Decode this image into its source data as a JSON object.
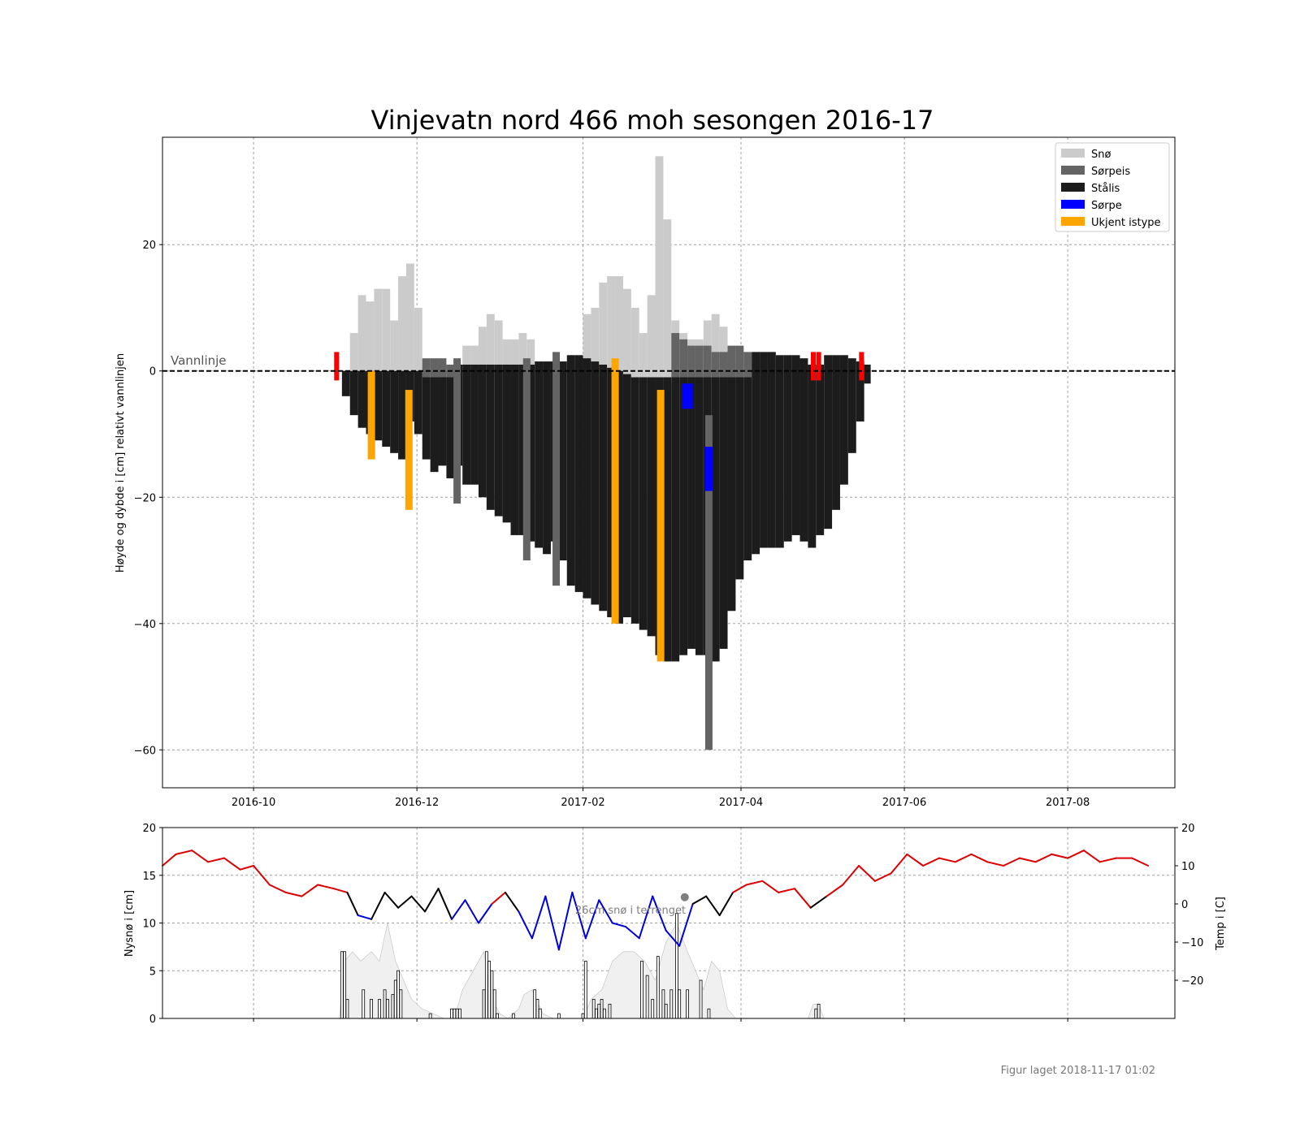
{
  "title": "Vinjevatn nord 466 moh sesongen 2016-17",
  "footer": "Figur laget 2018-11-17 01:02",
  "colors": {
    "snow": "#cbcbcb",
    "slush_ice": "#646464",
    "black_ice": "#1c1c1c",
    "slush": "#0000ff",
    "unknown": "#ffa500",
    "marker": "#ff0000",
    "temp_warm": "#dd0000",
    "temp_mid": "#000000",
    "temp_cold": "#0000dd",
    "snow_area": "#f0f0f0"
  },
  "chart_data": [
    {
      "type": "bar",
      "title": "Vinjevatn nord 466 moh sesongen 2016-17",
      "ylabel": "Høyde og dybde i [cm] relativt vannlinjen",
      "xlabel": "",
      "xlim": [
        "2016-08-28",
        "2017-09-10"
      ],
      "ylim": [
        -66,
        37
      ],
      "xticks": [
        "2016-10",
        "2016-12",
        "2017-02",
        "2017-04",
        "2017-06",
        "2017-08"
      ],
      "yticks": [
        -60,
        -40,
        -20,
        0,
        20
      ],
      "grid": true,
      "legend_position": "top-right",
      "legend": [
        "Snø",
        "Sørpeis",
        "Stålis",
        "Sørpe",
        "Ukjent istype"
      ],
      "waterline_label": "Vannlinje",
      "waterline_y": 0,
      "ice_profile": {
        "dates": [
          "2016-11-03",
          "2016-11-06",
          "2016-11-09",
          "2016-11-12",
          "2016-11-15",
          "2016-11-18",
          "2016-11-21",
          "2016-11-24",
          "2016-11-27",
          "2016-11-30",
          "2016-12-03",
          "2016-12-06",
          "2016-12-09",
          "2016-12-12",
          "2016-12-15",
          "2016-12-18",
          "2016-12-21",
          "2016-12-24",
          "2016-12-27",
          "2016-12-30",
          "2017-01-02",
          "2017-01-05",
          "2017-01-08",
          "2017-01-11",
          "2017-01-14",
          "2017-01-17",
          "2017-01-20",
          "2017-01-23",
          "2017-01-26",
          "2017-01-29",
          "2017-02-01",
          "2017-02-04",
          "2017-02-07",
          "2017-02-10",
          "2017-02-13",
          "2017-02-16",
          "2017-02-19",
          "2017-02-22",
          "2017-02-25",
          "2017-02-28",
          "2017-03-03",
          "2017-03-06",
          "2017-03-09",
          "2017-03-12",
          "2017-03-15",
          "2017-03-18",
          "2017-03-21",
          "2017-03-24",
          "2017-03-27",
          "2017-03-30",
          "2017-04-02",
          "2017-04-05",
          "2017-04-08",
          "2017-04-11",
          "2017-04-14",
          "2017-04-17",
          "2017-04-20",
          "2017-04-23",
          "2017-04-26",
          "2017-04-29",
          "2017-05-02",
          "2017-05-05",
          "2017-05-08",
          "2017-05-11",
          "2017-05-14",
          "2017-05-17"
        ],
        "snow_top": [
          0,
          6,
          12,
          11,
          13,
          13,
          8,
          15,
          17,
          10,
          0,
          0,
          0,
          0,
          0,
          4,
          4,
          7,
          9,
          8,
          5,
          5,
          6,
          5,
          0,
          0,
          0,
          0,
          0,
          0,
          9,
          10,
          14,
          15,
          15,
          13,
          10,
          6,
          12,
          34,
          24,
          8,
          6,
          5,
          5,
          8,
          9,
          7,
          0,
          0,
          0,
          0,
          0,
          0,
          0,
          0,
          0,
          0,
          0,
          0,
          0,
          0,
          0,
          0,
          0,
          0
        ],
        "surface": [
          0,
          0,
          0,
          0,
          0,
          0,
          0,
          0,
          0,
          0,
          1.5,
          1.5,
          1.5,
          1.5,
          1,
          1,
          1,
          1,
          1,
          1,
          1,
          1,
          1,
          1,
          1.5,
          1.5,
          1.5,
          1.5,
          2.5,
          2.5,
          2,
          1.5,
          1,
          0.5,
          0,
          -0.5,
          -1,
          -1,
          -1,
          -1,
          -1,
          -2,
          -2,
          -1,
          -1,
          -0.5,
          0,
          0,
          0,
          0,
          3,
          3,
          3,
          3,
          2.5,
          2.5,
          2.5,
          2,
          1,
          1,
          2.5,
          2.5,
          2.5,
          2,
          1.5,
          1
        ],
        "slush_ice_top": [
          0,
          0,
          0,
          0,
          0,
          0,
          0,
          0,
          0,
          0,
          2,
          2,
          2,
          1,
          0,
          0,
          0,
          0,
          0,
          0,
          0,
          0,
          0,
          0,
          0,
          0,
          0,
          0,
          0,
          0,
          0,
          0,
          0,
          0,
          0,
          0,
          0,
          0,
          0,
          0,
          0,
          6,
          5,
          4,
          4,
          4,
          3,
          3,
          4,
          4,
          3,
          0,
          0,
          0,
          0,
          0,
          0,
          0,
          0,
          0,
          0,
          0,
          0,
          0,
          0,
          0
        ],
        "bottom": [
          -4,
          -7,
          -9,
          -10,
          -11,
          -12,
          -13,
          -14,
          -8,
          -10,
          -14,
          -16,
          -15,
          -17,
          -15,
          -18,
          -18,
          -20,
          -22,
          -23,
          -24,
          -26,
          -26,
          -27,
          -28,
          -29,
          -27,
          -30,
          -34,
          -35,
          -36,
          -37,
          -38,
          -39,
          -40,
          -39,
          -40,
          -41,
          -42,
          -45,
          -46,
          -46,
          -45,
          -44,
          -45,
          -45,
          -46,
          -44,
          -38,
          -33,
          -30,
          -29,
          -28,
          -28,
          -28,
          -27,
          -26,
          -27,
          -28,
          -26,
          -25,
          -22,
          -18,
          -13,
          -8,
          -2
        ]
      },
      "special_columns": [
        {
          "date": "2016-11-01",
          "type": "marker",
          "top": 3,
          "bottom": -1.5
        },
        {
          "date": "2016-11-14",
          "type": "unknown",
          "top": 0,
          "bottom": -14
        },
        {
          "date": "2016-11-28",
          "type": "unknown",
          "top": -3,
          "bottom": -22
        },
        {
          "date": "2016-12-16",
          "type": "slush_ice",
          "top": 2,
          "bottom": -21
        },
        {
          "date": "2017-01-11",
          "type": "slush_ice",
          "top": 2,
          "bottom": -30
        },
        {
          "date": "2017-01-22",
          "type": "slush_ice",
          "top": 3,
          "bottom": -34
        },
        {
          "date": "2017-02-13",
          "type": "unknown",
          "top": 2,
          "bottom": -40
        },
        {
          "date": "2017-03-02",
          "type": "unknown",
          "top": -3,
          "bottom": -46
        },
        {
          "date": "2017-03-20",
          "type": "slush_ice",
          "top": -7,
          "bottom": -60
        },
        {
          "date": "2017-03-20",
          "type": "slush",
          "top": -12,
          "bottom": -19
        },
        {
          "date": "2017-04-28",
          "type": "marker",
          "top": 3,
          "bottom": -1.5
        },
        {
          "date": "2017-04-30",
          "type": "marker",
          "top": 3,
          "bottom": -1.5
        },
        {
          "date": "2017-05-16",
          "type": "marker",
          "top": 3,
          "bottom": -1.5
        }
      ]
    },
    {
      "type": "line",
      "ylabel": "Nysnø i [cm]",
      "y2label": "Temp i [C]",
      "xlim": [
        "2016-08-28",
        "2017-09-10"
      ],
      "ylim": [
        0,
        20
      ],
      "y2lim": [
        -30,
        20
      ],
      "yticks": [
        0,
        5,
        10,
        15,
        20
      ],
      "y2ticks": [
        -20,
        -10,
        0,
        10,
        20
      ],
      "grid": true,
      "annotation": "26cm snø i terrenget",
      "annotation_date": "2017-03-11",
      "annotation_y": 12.7,
      "temperature": {
        "name": "Temp",
        "x": [
          "2016-08-28",
          "2016-09-02",
          "2016-09-08",
          "2016-09-14",
          "2016-09-20",
          "2016-09-26",
          "2016-10-01",
          "2016-10-07",
          "2016-10-13",
          "2016-10-19",
          "2016-10-25",
          "2016-10-31",
          "2016-11-05",
          "2016-11-09",
          "2016-11-14",
          "2016-11-19",
          "2016-11-24",
          "2016-11-29",
          "2016-12-04",
          "2016-12-09",
          "2016-12-14",
          "2016-12-19",
          "2016-12-24",
          "2016-12-29",
          "2017-01-03",
          "2017-01-08",
          "2017-01-13",
          "2017-01-18",
          "2017-01-23",
          "2017-01-28",
          "2017-02-02",
          "2017-02-07",
          "2017-02-12",
          "2017-02-17",
          "2017-02-22",
          "2017-02-27",
          "2017-03-04",
          "2017-03-09",
          "2017-03-14",
          "2017-03-19",
          "2017-03-24",
          "2017-03-29",
          "2017-04-03",
          "2017-04-09",
          "2017-04-15",
          "2017-04-21",
          "2017-04-27",
          "2017-05-03",
          "2017-05-09",
          "2017-05-15",
          "2017-05-21",
          "2017-05-27",
          "2017-06-02",
          "2017-06-08",
          "2017-06-14",
          "2017-06-20",
          "2017-06-26",
          "2017-07-02",
          "2017-07-08",
          "2017-07-14",
          "2017-07-20",
          "2017-07-26",
          "2017-08-01",
          "2017-08-07",
          "2017-08-13",
          "2017-08-19",
          "2017-08-25",
          "2017-08-31"
        ],
        "y": [
          10,
          13,
          14,
          11,
          12,
          9,
          10,
          5,
          3,
          2,
          5,
          4,
          3,
          -3,
          -4,
          3,
          -1,
          2,
          -2,
          4,
          -4,
          1,
          -5,
          0,
          3,
          -2,
          -9,
          2,
          -12,
          3,
          -9,
          1,
          -5,
          -6,
          -9,
          2,
          -7,
          -11,
          0,
          2,
          -3,
          3,
          5,
          6,
          3,
          4,
          -1,
          2,
          5,
          10,
          6,
          8,
          13,
          10,
          12,
          11,
          13,
          11,
          10,
          12,
          11,
          13,
          12,
          14,
          11,
          12,
          12,
          10
        ]
      },
      "snowfall": {
        "name": "Nysnø",
        "x": [
          "2016-11-03",
          "2016-11-04",
          "2016-11-05",
          "2016-11-11",
          "2016-11-14",
          "2016-11-17",
          "2016-11-19",
          "2016-11-20",
          "2016-11-22",
          "2016-11-23",
          "2016-11-24",
          "2016-11-25",
          "2016-12-06",
          "2016-12-14",
          "2016-12-15",
          "2016-12-16",
          "2016-12-17",
          "2016-12-26",
          "2016-12-27",
          "2016-12-28",
          "2016-12-29",
          "2016-12-30",
          "2016-12-31",
          "2017-01-06",
          "2017-01-14",
          "2017-01-15",
          "2017-01-16",
          "2017-01-23",
          "2017-02-01",
          "2017-02-02",
          "2017-02-05",
          "2017-02-06",
          "2017-02-07",
          "2017-02-08",
          "2017-02-09",
          "2017-02-11",
          "2017-02-23",
          "2017-02-25",
          "2017-02-27",
          "2017-03-01",
          "2017-03-03",
          "2017-03-04",
          "2017-03-06",
          "2017-03-08",
          "2017-03-09",
          "2017-03-12",
          "2017-03-17",
          "2017-03-20",
          "2017-04-29",
          "2017-04-30"
        ],
        "y": [
          7,
          7,
          2,
          3,
          2,
          2,
          3,
          2,
          2.5,
          4,
          5,
          3,
          0.5,
          1,
          1,
          1,
          1,
          3,
          7,
          6,
          5,
          3,
          0.5,
          0.5,
          3,
          2,
          1,
          0.5,
          0.5,
          6,
          2,
          1,
          1.5,
          2,
          1,
          1.5,
          6,
          4.5,
          2,
          6.5,
          3,
          1.5,
          3,
          11,
          3,
          3,
          4,
          1,
          1,
          1.5
        ]
      },
      "ground_snow": {
        "name": "Snø i terrenget",
        "x": [
          "2016-11-02",
          "2016-11-04",
          "2016-11-07",
          "2016-11-10",
          "2016-11-14",
          "2016-11-17",
          "2016-11-20",
          "2016-11-23",
          "2016-11-26",
          "2016-11-29",
          "2016-12-03",
          "2016-12-07",
          "2016-12-11",
          "2016-12-15",
          "2016-12-18",
          "2016-12-22",
          "2016-12-26",
          "2016-12-29",
          "2017-01-01",
          "2017-01-04",
          "2017-01-08",
          "2017-01-10",
          "2017-01-13",
          "2017-01-17",
          "2017-01-21",
          "2017-01-24",
          "2017-01-28",
          "2017-02-01",
          "2017-02-04",
          "2017-02-08",
          "2017-02-12",
          "2017-02-16",
          "2017-02-20",
          "2017-02-24",
          "2017-02-28",
          "2017-03-04",
          "2017-03-08",
          "2017-03-12",
          "2017-03-15",
          "2017-03-18",
          "2017-03-21",
          "2017-03-24",
          "2017-03-27",
          "2017-03-30",
          "2017-04-26",
          "2017-04-28",
          "2017-04-30",
          "2017-05-02"
        ],
        "y": [
          0,
          6,
          7,
          6,
          7,
          6,
          10,
          6,
          4,
          2,
          1,
          0.5,
          0,
          0,
          3,
          5,
          7,
          2,
          0.5,
          0,
          1,
          2.5,
          3,
          0.5,
          0,
          0,
          0,
          0,
          2,
          3,
          6,
          7,
          7,
          6,
          4,
          8,
          10,
          7,
          5,
          3,
          6,
          5,
          1,
          0,
          0,
          1.5,
          1.5,
          0
        ]
      }
    }
  ]
}
